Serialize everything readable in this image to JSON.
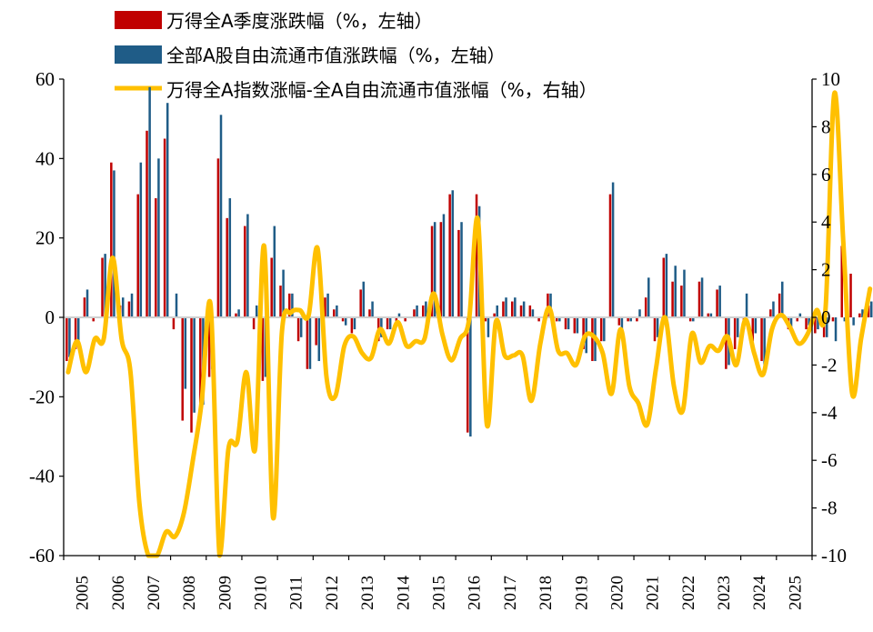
{
  "chart_data": {
    "type": "bar+line",
    "x_ticks": [
      "2005",
      "2006",
      "2007",
      "2008",
      "2009",
      "2010",
      "2011",
      "2012",
      "2013",
      "2014",
      "2015",
      "2016",
      "2017",
      "2018",
      "2019",
      "2020",
      "2021",
      "2022",
      "2023",
      "2024",
      "2025"
    ],
    "left_axis": {
      "ylim": [
        -60,
        60
      ],
      "ticks": [
        "60",
        "40",
        "20",
        "0",
        "-20",
        "-40",
        "-60"
      ]
    },
    "right_axis": {
      "ylim": [
        -10,
        10
      ],
      "ticks": [
        "10",
        "8",
        "6",
        "4",
        "2",
        "0",
        "-2",
        "-4",
        "-6",
        "-8",
        "-10"
      ]
    },
    "legend": [
      {
        "label": "万得全A季度涨跌幅（%，左轴）",
        "color": "#C00000",
        "kind": "bar"
      },
      {
        "label": "全部A股自由流通市值涨跌幅（%，左轴）",
        "color": "#1F5C87",
        "kind": "bar"
      },
      {
        "label": "万得全A指数涨幅-全A自由流通市值涨幅（%，右轴）",
        "color": "#FFC000",
        "kind": "line"
      }
    ],
    "series": [
      {
        "name": "万得全A季度涨跌幅",
        "axis": "left",
        "values": [
          -11,
          -8,
          5,
          -1,
          15,
          39,
          3,
          4,
          31,
          47,
          30,
          45,
          -3,
          -26,
          -29,
          -23,
          -15,
          40,
          25,
          1,
          23,
          -3,
          -16,
          15,
          8,
          6,
          -6,
          -13,
          -7,
          5,
          2,
          -1,
          -4,
          7,
          2,
          -6,
          -3,
          -1,
          -1,
          2,
          3,
          23,
          24,
          31,
          22,
          -29,
          31,
          -1,
          1,
          4,
          4,
          3,
          3,
          -1,
          6,
          -1,
          -3,
          -4,
          -8,
          -11,
          -6,
          31,
          -2,
          -1,
          -1,
          5,
          -6,
          15,
          9,
          8,
          -1,
          9,
          1,
          7,
          -13,
          -8,
          -3,
          -6,
          -11,
          2,
          6,
          -3,
          -1,
          -3,
          -4,
          -5,
          -1,
          18,
          11,
          1,
          3,
          4
        ],
        "values_note": "quarterly, 2005Q1 onward (approximate, read from chart)"
      },
      {
        "name": "全部A股自由流通市值涨跌幅",
        "axis": "left",
        "values": [
          -10,
          -7,
          7,
          0,
          16,
          37,
          5,
          6,
          39,
          58,
          40,
          54,
          6,
          -18,
          -24,
          -22,
          -13,
          51,
          30,
          2,
          26,
          3,
          -15,
          23,
          12,
          6,
          -5,
          -13,
          -11,
          6,
          3,
          -2,
          -3,
          9,
          4,
          -5,
          -3,
          1,
          0,
          3,
          4,
          24,
          26,
          32,
          24,
          -30,
          28,
          -5,
          3,
          5,
          5,
          4,
          2,
          0,
          6,
          -1,
          -3,
          -4,
          -9,
          -11,
          -6,
          34,
          -3,
          -1,
          2,
          10,
          -5,
          16,
          13,
          12,
          -1,
          10,
          1,
          8,
          -12,
          -5,
          6,
          -4,
          -12,
          4,
          9,
          -3,
          1,
          -2,
          -3,
          -5,
          -6,
          -1,
          -2,
          2,
          4,
          4
        ],
        "values_note": "quarterly, 2005Q1 onward (approximate, read from chart)"
      },
      {
        "name": "万得全A指数涨幅-全A自由流通市值涨幅",
        "axis": "right",
        "values": [
          -2.3,
          -1.0,
          -2.3,
          -0.9,
          -0.9,
          2.5,
          -0.9,
          -2.3,
          -7.8,
          -10.2,
          -10.5,
          -9.0,
          -9.2,
          -8.2,
          -6.0,
          -3.5,
          0.5,
          -10.3,
          -5.5,
          -5.2,
          -2.3,
          -5.5,
          3.0,
          -8.4,
          -0.6,
          0.2,
          0.3,
          0.1,
          2.9,
          -2.5,
          -3.3,
          -1.2,
          -0.8,
          -1.5,
          -1.7,
          -0.5,
          -1.1,
          -0.2,
          -1.2,
          -1.0,
          -0.9,
          1.0,
          -0.7,
          -1.8,
          -0.9,
          -0.1,
          4.1,
          -4.5,
          -0.2,
          -1.6,
          -1.6,
          -1.6,
          -3.5,
          -1.1,
          0.4,
          -1.4,
          -1.5,
          -2.0,
          -0.8,
          -0.8,
          -1.5,
          -3.2,
          -0.5,
          -2.9,
          -3.6,
          -4.5,
          -2.1,
          0.0,
          -2.9,
          -3.9,
          -0.7,
          -1.9,
          -1.2,
          -1.4,
          -0.8,
          -2.0,
          -0.1,
          -1.5,
          -2.4,
          -0.5,
          0.1,
          -0.4,
          -1.1,
          -0.7,
          0.3,
          0.3,
          9.4,
          3.2,
          -3.2,
          -0.9,
          1.2
        ],
        "values_note": "quarterly, 2005Q1 onward (approximate, read from chart)"
      }
    ]
  }
}
